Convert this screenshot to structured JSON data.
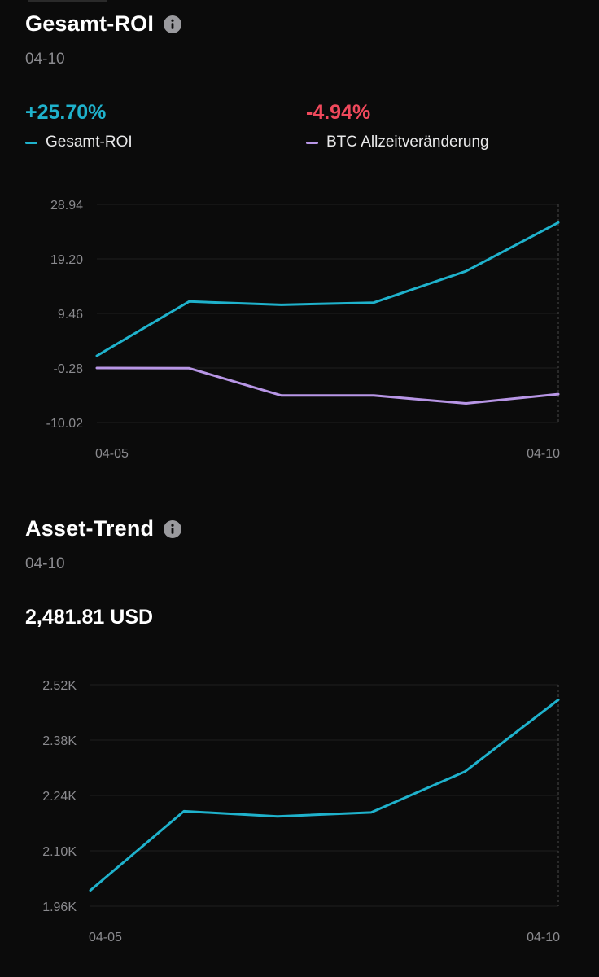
{
  "roi": {
    "title": "Gesamt-ROI",
    "date": "04-10",
    "stats": [
      {
        "value": "+25.70%",
        "color": "#1fb2cc",
        "legend": "Gesamt-ROI",
        "legend_color": "#1fb2cc"
      },
      {
        "value": "-4.94%",
        "color": "#f0495c",
        "legend": "BTC Allzeitveränderung",
        "legend_color": "#b896e6"
      }
    ]
  },
  "assets": {
    "title": "Asset-Trend",
    "date": "04-10",
    "total": "2,481.81 USD"
  },
  "chart_data": [
    {
      "type": "line",
      "x_tick_labels": [
        "04-05",
        "04-10"
      ],
      "y_tick_labels": [
        "28.94",
        "19.20",
        "9.46",
        "-0.28",
        "-10.02"
      ],
      "ylim": [
        -10.02,
        28.94
      ],
      "grid": true,
      "series": [
        {
          "name": "Gesamt-ROI",
          "color": "#1fb2cc",
          "values": [
            1.9,
            11.6,
            11.0,
            11.4,
            17.0,
            25.7
          ]
        },
        {
          "name": "BTC Allzeitveränderung",
          "color": "#b896e6",
          "values": [
            -0.28,
            -0.33,
            -5.2,
            -5.2,
            -6.6,
            -4.94
          ]
        }
      ]
    },
    {
      "type": "line",
      "x_tick_labels": [
        "04-05",
        "04-10"
      ],
      "y_tick_labels": [
        "2.52K",
        "2.38K",
        "2.24K",
        "2.10K",
        "1.96K"
      ],
      "ylim": [
        1.96,
        2.52
      ],
      "grid": true,
      "series": [
        {
          "name": "",
          "color": "#1fb2cc",
          "values": [
            2.0,
            2.2,
            2.187,
            2.197,
            2.3,
            2.48181
          ]
        }
      ]
    }
  ]
}
